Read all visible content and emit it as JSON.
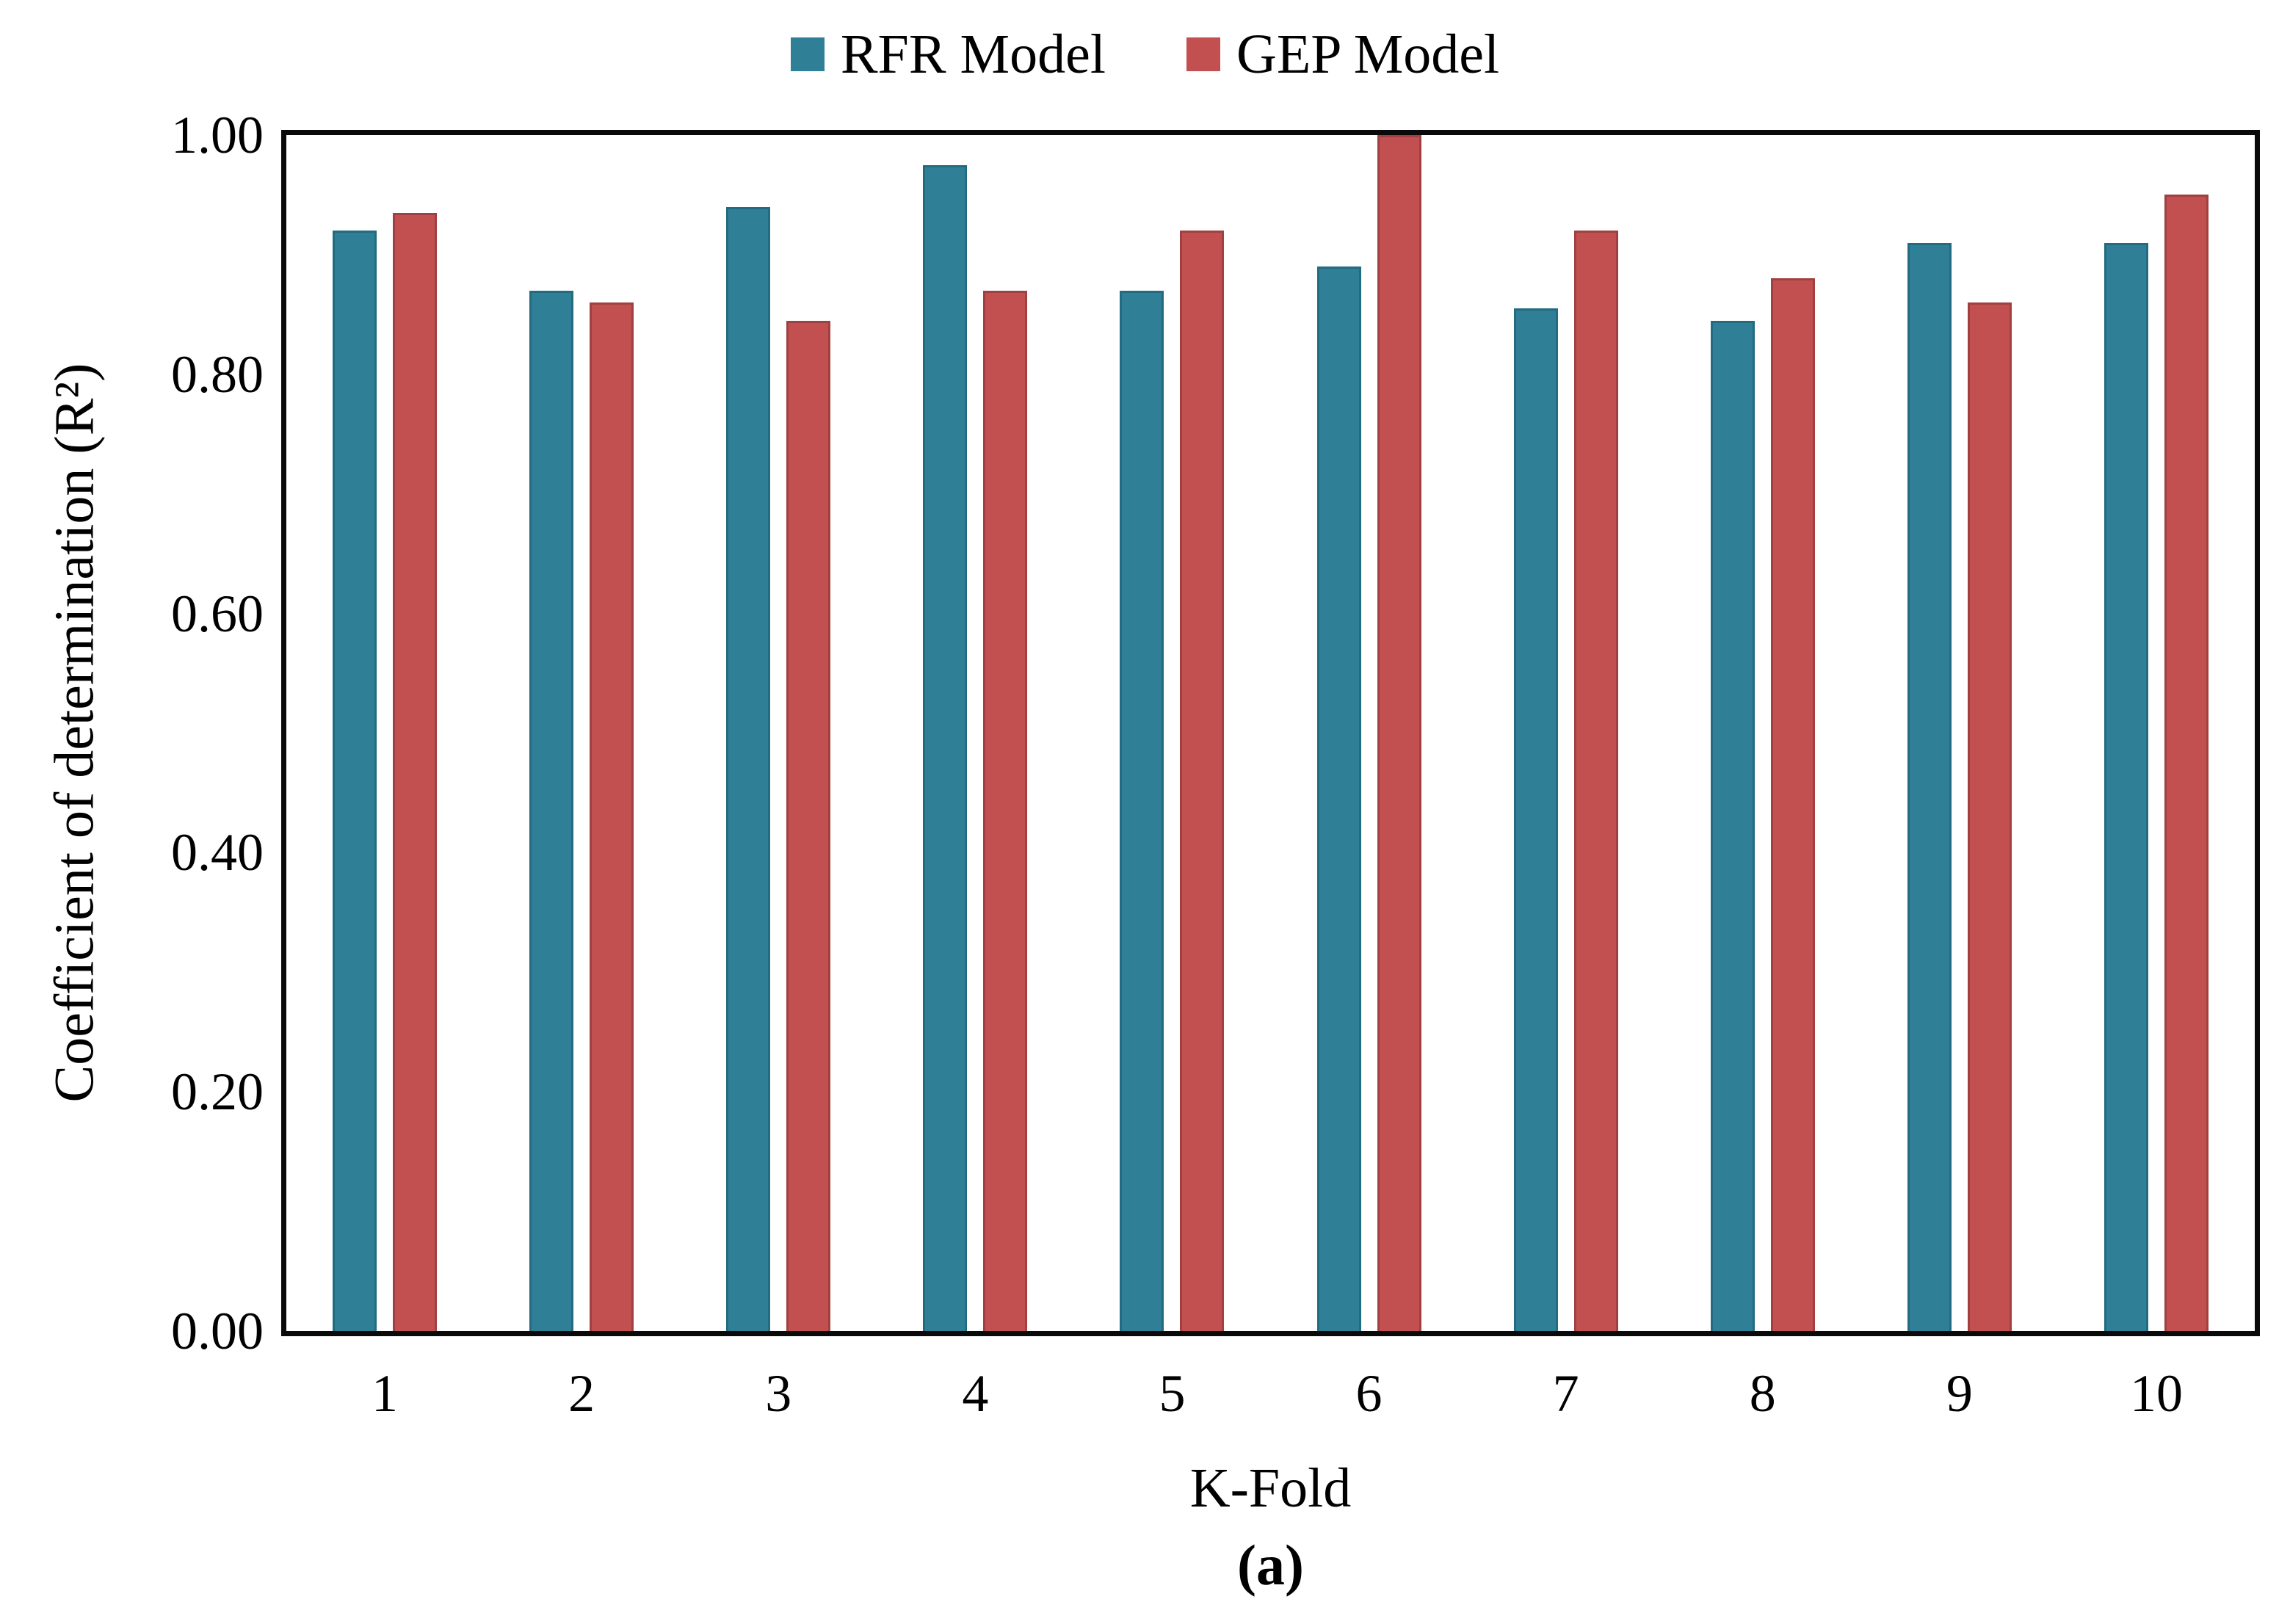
{
  "figure": {
    "caption": "(a)"
  },
  "legend": {
    "items": [
      {
        "label": "RFR Model",
        "color": "#2F8096",
        "edge": "#226B80"
      },
      {
        "label": "GEP Model",
        "color": "#C25050",
        "edge": "#A04040"
      }
    ]
  },
  "axes": {
    "y_title": "Coefficient of determination (R²)",
    "x_title": "K-Fold",
    "y_ticks": [
      {
        "label": "1.00",
        "value": 1.0
      },
      {
        "label": "0.80",
        "value": 0.8
      },
      {
        "label": "0.60",
        "value": 0.6
      },
      {
        "label": "0.40",
        "value": 0.4
      },
      {
        "label": "0.20",
        "value": 0.2
      },
      {
        "label": "0.00",
        "value": 0.0
      }
    ]
  },
  "chart_data": {
    "type": "bar",
    "title": "",
    "categories": [
      "1",
      "2",
      "3",
      "4",
      "5",
      "6",
      "7",
      "8",
      "9",
      "10"
    ],
    "series": [
      {
        "name": "RFR Model",
        "color": "#2F8096",
        "values": [
          0.92,
          0.87,
          0.94,
          0.975,
          0.87,
          0.89,
          0.855,
          0.845,
          0.91,
          0.91
        ]
      },
      {
        "name": "GEP Model",
        "color": "#C25050",
        "values": [
          0.935,
          0.86,
          0.845,
          0.87,
          0.92,
          1.0,
          0.92,
          0.88,
          0.86,
          0.95
        ]
      }
    ],
    "xlabel": "K-Fold",
    "ylabel": "Coefficient of determination (R²)",
    "ylim": [
      0.0,
      1.0
    ],
    "ytick_step": 0.2,
    "grid": false,
    "legend_position": "top-center",
    "plot_background": "#ffffff",
    "frame_color": "#0a0a0a"
  }
}
